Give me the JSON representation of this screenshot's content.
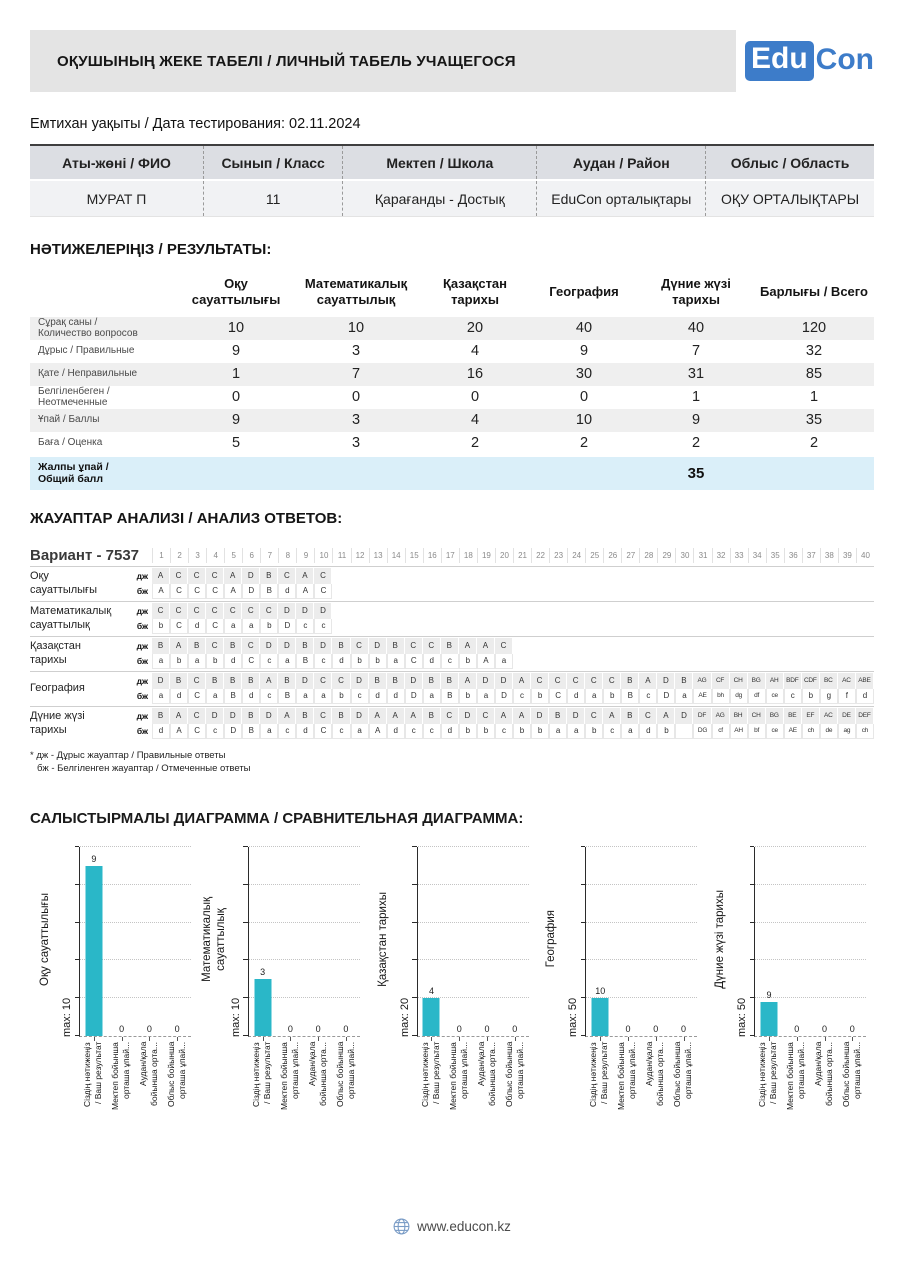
{
  "header": {
    "title": "ОҚУШЫНЫҢ ЖЕКЕ ТАБЕЛІ / ЛИЧНЫЙ ТАБЕЛЬ УЧАЩЕГОСЯ",
    "logo_edu": "Edu",
    "logo_con": "Con"
  },
  "date_line": "Емтихан уақыты / Дата тестирования: 02.11.2024",
  "info_table": {
    "headers": [
      "Аты-жөні / ФИО",
      "Сынып / Класс",
      "Мектеп / Школа",
      "Аудан / Район",
      "Облыс / Область"
    ],
    "values": [
      "МУРАТ П",
      "11",
      "Қарағанды - Достық",
      "EduCon орталықтары",
      "ОҚУ ОРТАЛЫҚТАРЫ"
    ]
  },
  "results": {
    "title": "НӘТИЖЕЛЕРІҢІЗ / РЕЗУЛЬТАТЫ:",
    "columns": [
      "Оқу\nсауаттылығы",
      "Математикалық\nсауаттылық",
      "Қазақстан\nтарихы",
      "География",
      "Дүние жүзі\nтарихы",
      "Барлығы / Всего"
    ],
    "rows": [
      {
        "label": "Сұрақ саны /\nКоличество вопросов",
        "values": [
          "10",
          "10",
          "20",
          "40",
          "40",
          "120"
        ]
      },
      {
        "label": "Дұрыс / Правильные",
        "values": [
          "9",
          "3",
          "4",
          "9",
          "7",
          "32"
        ]
      },
      {
        "label": "Қате / Неправильные",
        "values": [
          "1",
          "7",
          "16",
          "30",
          "31",
          "85"
        ]
      },
      {
        "label": "Белгіленбеген /\nНеотмеченные",
        "values": [
          "0",
          "0",
          "0",
          "0",
          "1",
          "1"
        ]
      },
      {
        "label": "Ұпай / Баллы",
        "values": [
          "9",
          "3",
          "4",
          "10",
          "9",
          "35"
        ]
      },
      {
        "label": "Баға / Оценка",
        "values": [
          "5",
          "3",
          "2",
          "2",
          "2",
          "2"
        ]
      }
    ],
    "total_label": "Жалпы ұпай  /\nОбщий балл",
    "total_value": "35",
    "total_value_column": 4
  },
  "answers": {
    "title": "ЖАУАПТАР АНАЛИЗІ / АНАЛИЗ ОТВЕТОВ:",
    "variant_label": "Вариант - 7537",
    "question_count": 40,
    "dzh_label": "дж",
    "bzh_label": "бж",
    "subjects": [
      {
        "name": "Оқу\nсауаттылығы",
        "dzh": [
          "A",
          "C",
          "C",
          "C",
          "A",
          "D",
          "B",
          "C",
          "A",
          "C"
        ],
        "bzh": [
          "A",
          "C",
          "C",
          "C",
          "A",
          "D",
          "B",
          "d",
          "A",
          "C"
        ]
      },
      {
        "name": "Математикалық\nсауаттылық",
        "dzh": [
          "C",
          "C",
          "C",
          "C",
          "C",
          "C",
          "C",
          "D",
          "D",
          "D"
        ],
        "bzh": [
          "b",
          "C",
          "d",
          "C",
          "a",
          "a",
          "b",
          "D",
          "c",
          "c"
        ]
      },
      {
        "name": "Қазақстан\nтарихы",
        "dzh": [
          "B",
          "A",
          "B",
          "C",
          "B",
          "C",
          "D",
          "D",
          "B",
          "D",
          "B",
          "C",
          "D",
          "B",
          "C",
          "C",
          "B",
          "A",
          "A",
          "C"
        ],
        "bzh": [
          "a",
          "b",
          "a",
          "b",
          "d",
          "C",
          "c",
          "a",
          "B",
          "c",
          "d",
          "b",
          "b",
          "a",
          "C",
          "d",
          "c",
          "b",
          "A",
          "a"
        ]
      },
      {
        "name": "География",
        "dzh": [
          "D",
          "B",
          "C",
          "B",
          "B",
          "B",
          "A",
          "B",
          "D",
          "C",
          "C",
          "D",
          "B",
          "B",
          "D",
          "B",
          "B",
          "A",
          "D",
          "D",
          "A",
          "C",
          "C",
          "C",
          "C",
          "C",
          "B",
          "A",
          "D",
          "B",
          "AG",
          "CF",
          "CH",
          "BG",
          "AH",
          "BDF",
          "CDF",
          "BC",
          "AC",
          "ABE"
        ],
        "bzh": [
          "a",
          "d",
          "C",
          "a",
          "B",
          "d",
          "c",
          "B",
          "a",
          "a",
          "b",
          "c",
          "d",
          "d",
          "D",
          "a",
          "B",
          "b",
          "a",
          "D",
          "c",
          "b",
          "C",
          "d",
          "a",
          "b",
          "B",
          "c",
          "D",
          "a",
          "AE",
          "bh",
          "dg",
          "df",
          "ce",
          "c",
          "b",
          "g",
          "f",
          "d"
        ]
      },
      {
        "name": "Дүние жүзі\nтарихы",
        "dzh": [
          "B",
          "A",
          "C",
          "D",
          "D",
          "B",
          "D",
          "A",
          "B",
          "C",
          "B",
          "D",
          "A",
          "A",
          "A",
          "B",
          "C",
          "D",
          "C",
          "A",
          "A",
          "D",
          "B",
          "D",
          "C",
          "A",
          "B",
          "C",
          "A",
          "D",
          "DF",
          "AG",
          "BH",
          "CH",
          "BG",
          "BE",
          "EF",
          "AC",
          "DE",
          "DEF"
        ],
        "bzh": [
          "d",
          "A",
          "C",
          "c",
          "D",
          "B",
          "a",
          "c",
          "d",
          "C",
          "c",
          "a",
          "A",
          "d",
          "c",
          "c",
          "d",
          "b",
          "b",
          "c",
          "b",
          "b",
          "a",
          "a",
          "b",
          "c",
          "a",
          "d",
          "b",
          "",
          "DG",
          "cf",
          "AH",
          "bf",
          "ce",
          "AE",
          "ch",
          "de",
          "ag",
          "ch"
        ]
      }
    ],
    "legend": [
      "* дж - Дұрыс жауаптар / Правильные ответы",
      "бж - Белгіленген жауаптар / Отмеченные ответы"
    ]
  },
  "charts_section": {
    "title": "САЛЫСТЫРМАЛЫ ДИАГРАММА / СРАВНИТЕЛЬНАЯ ДИАГРАММА:"
  },
  "chart_data": {
    "type": "bar",
    "grid": "dotted-horizontal",
    "legend_position": "none",
    "categories": [
      [
        "Сіздің нәтижеңіз",
        "/ Ваш результат"
      ],
      [
        "Мектеп бойынша",
        "орташа ұпай..."
      ],
      [
        "Аудан/қала",
        "бойынша орта..."
      ],
      [
        "Облыс бойынша",
        "орташа ұпай..."
      ]
    ],
    "charts": [
      {
        "title": "Оқу сауаттылығы",
        "max_label": "max: 10",
        "ylim": [
          0,
          10
        ],
        "values": [
          9,
          0,
          0,
          0
        ]
      },
      {
        "title": "Математикалық\nсауаттылық",
        "max_label": "max: 10",
        "ylim": [
          0,
          10
        ],
        "values": [
          3,
          0,
          0,
          0
        ]
      },
      {
        "title": "Қазақстан тарихы",
        "max_label": "max: 20",
        "ylim": [
          0,
          20
        ],
        "values": [
          4,
          0,
          0,
          0
        ]
      },
      {
        "title": "География",
        "max_label": "max: 50",
        "ylim": [
          0,
          50
        ],
        "values": [
          10,
          0,
          0,
          0
        ]
      },
      {
        "title": "Дүние жүзі тарихы",
        "max_label": "max: 50",
        "ylim": [
          0,
          50
        ],
        "values": [
          9,
          0,
          0,
          0
        ]
      }
    ]
  },
  "footer": {
    "url": "www.educon.kz"
  },
  "colors": {
    "accent_blue": "#3d7cc9",
    "bar_teal": "#2ab7c8",
    "header_gray": "#e4e4e4",
    "total_row_blue": "#daeff9"
  }
}
